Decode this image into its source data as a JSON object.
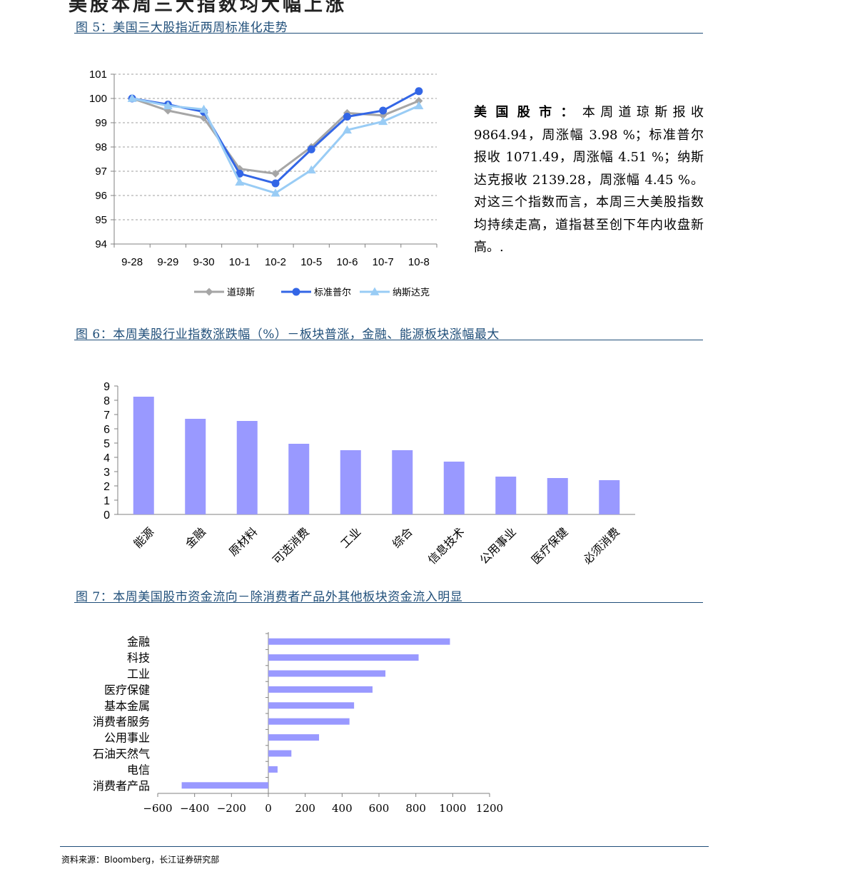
{
  "top_title": "美股本周三大指数均大幅上涨",
  "figures": {
    "fig5": {
      "title": "图 5：美国三大股指近两周标准化走势"
    },
    "fig6": {
      "title": "图 6：本周美股行业指数涨跌幅（%）－板块普涨，金融、能源板块涨幅最大"
    },
    "fig7": {
      "title": "图 7：本周美国股市资金流向－除消费者产品外其他板块资金流入明显"
    }
  },
  "commentary": {
    "label": "美国股市：",
    "body": "本周道琼斯报收9864.94，周涨幅 3.98 %；标准普尔报收 1071.49，周涨幅 4.51 %；纳斯达克报收 2139.28，周涨幅 4.45 %。对这三个指数而言，本周三大美股指数均持续走高，道指甚至创下年内收盘新高。."
  },
  "source": "资料来源：Bloomberg，长江证券研究部",
  "chart_data": [
    {
      "id": "fig5",
      "type": "line",
      "categories": [
        "9-28",
        "9-29",
        "9-30",
        "10-1",
        "10-2",
        "10-5",
        "10-6",
        "10-7",
        "10-8"
      ],
      "ylim": [
        94,
        101
      ],
      "yticks": [
        94,
        95,
        96,
        97,
        98,
        99,
        100,
        101
      ],
      "grid": true,
      "legend": "bottom",
      "series": [
        {
          "name": "道琼斯",
          "color": "#a6a6a6",
          "marker": "diamond",
          "values": [
            100.0,
            99.5,
            99.2,
            97.1,
            96.9,
            98.0,
            99.4,
            99.3,
            99.9
          ]
        },
        {
          "name": "标准普尔",
          "color": "#3366e6",
          "marker": "circle",
          "values": [
            100.0,
            99.75,
            99.45,
            96.9,
            96.5,
            97.9,
            99.25,
            99.5,
            100.3
          ]
        },
        {
          "name": "纳斯达克",
          "color": "#99ccf5",
          "marker": "triangle",
          "values": [
            100.0,
            99.7,
            99.55,
            96.55,
            96.1,
            97.05,
            98.7,
            99.05,
            99.7
          ]
        }
      ]
    },
    {
      "id": "fig6",
      "type": "bar",
      "color": "#9999ff",
      "categories": [
        "能源",
        "金融",
        "原材料",
        "可选消费",
        "工业",
        "综合",
        "信息技术",
        "公用事业",
        "医疗保健",
        "必须消费"
      ],
      "values": [
        8.25,
        6.7,
        6.55,
        4.95,
        4.5,
        4.5,
        3.7,
        2.65,
        2.55,
        2.4
      ],
      "ylim": [
        0,
        9
      ],
      "yticks": [
        0,
        1,
        2,
        3,
        4,
        5,
        6,
        7,
        8,
        9
      ]
    },
    {
      "id": "fig7",
      "type": "bar",
      "orientation": "horizontal",
      "color": "#9999ff",
      "categories": [
        "金融",
        "科技",
        "工业",
        "医疗保健",
        "基本金属",
        "消费者服务",
        "公用事业",
        "石油天然气",
        "电信",
        "消费者产品"
      ],
      "values": [
        985,
        815,
        635,
        565,
        465,
        440,
        275,
        125,
        50,
        -470
      ],
      "xlim": [
        -600,
        1200
      ],
      "xticks": [
        -600,
        -400,
        -200,
        0,
        200,
        400,
        600,
        800,
        1000,
        1200
      ]
    }
  ]
}
